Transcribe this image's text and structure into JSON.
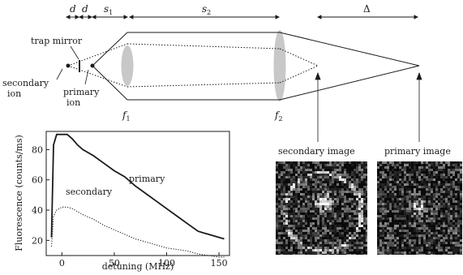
{
  "setup": {
    "dims": {
      "d1": "d",
      "d2": "d",
      "s1": "s",
      "s1_sub": "1",
      "s2": "s",
      "s2_sub": "2",
      "delta": "Δ"
    },
    "labels": {
      "trap_mirror": "trap mirror",
      "secondary_ion": [
        "secondary",
        "ion"
      ],
      "primary_ion": [
        "primary",
        "ion"
      ],
      "lens1": "f",
      "lens1_sub": "1",
      "lens2": "f",
      "lens2_sub": "2"
    },
    "images": {
      "secondary": "secondary image",
      "primary": "primary image"
    }
  },
  "chart_data": {
    "type": "line",
    "xlabel": "detuning (MHz)",
    "ylabel": "Fluorescence (counts/ms)",
    "xlim": [
      -15,
      160
    ],
    "ylim": [
      10,
      92
    ],
    "xticks": [
      0,
      50,
      100,
      150
    ],
    "yticks": [
      20,
      40,
      60,
      80
    ],
    "grid": false,
    "series": [
      {
        "name": "primary",
        "style": "solid",
        "x": [
          -10,
          -8,
          -5,
          0,
          5,
          10,
          15,
          20,
          30,
          40,
          50,
          60,
          70,
          80,
          90,
          100,
          110,
          120,
          130,
          140,
          150,
          155
        ],
        "y": [
          22,
          83,
          90,
          90,
          90,
          87,
          83,
          80,
          76,
          71,
          66,
          62,
          56,
          51,
          46,
          41,
          36,
          31,
          26,
          24,
          22,
          21
        ]
      },
      {
        "name": "secondary",
        "style": "dotted",
        "x": [
          -10,
          -8,
          -5,
          0,
          5,
          10,
          15,
          20,
          30,
          40,
          50,
          60,
          70,
          80,
          90,
          100,
          110,
          120,
          130,
          140,
          150,
          155
        ],
        "y": [
          16,
          36,
          40,
          42,
          42,
          41,
          39,
          37,
          34,
          30,
          27,
          24,
          21,
          19,
          17,
          15,
          14,
          13,
          11,
          10,
          9,
          9
        ]
      }
    ],
    "annotations": [
      "primary",
      "secondary"
    ]
  }
}
